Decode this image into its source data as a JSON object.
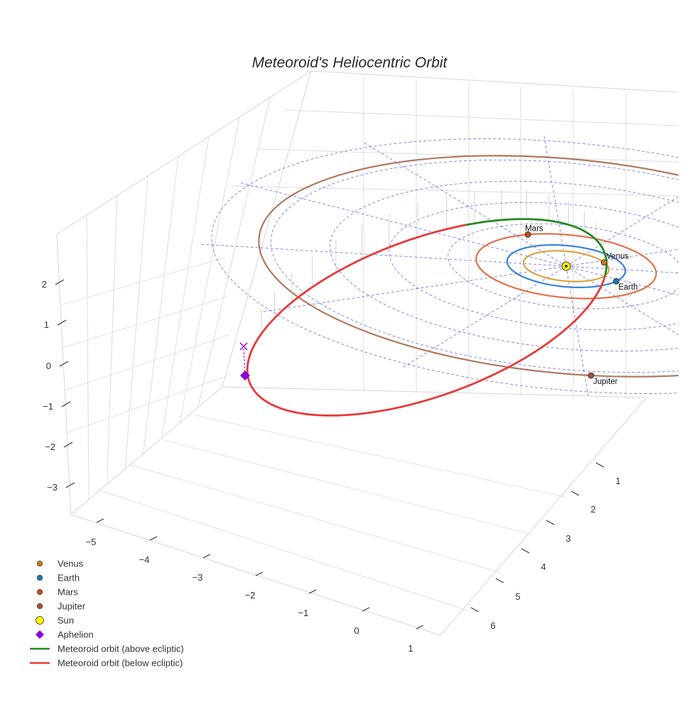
{
  "chart_data": {
    "type": "scatter",
    "title": "Meteoroid's Heliocentric Orbit",
    "xlabel": "",
    "ylabel": "",
    "zlabel": "",
    "x_ticks": [
      -5,
      -4,
      -3,
      -2,
      -1,
      0,
      1
    ],
    "y_ticks": [
      1,
      2,
      3,
      4,
      5,
      6
    ],
    "z_ticks": [
      2,
      1,
      0,
      -1,
      -2,
      -3
    ],
    "grid": true,
    "legend_position": "bottom-left",
    "planet_orbit_radii_au": {
      "Venus": 0.723,
      "Earth": 1.0,
      "Mars": 1.524,
      "Jupiter": 5.203
    },
    "bodies": [
      {
        "name": "Venus",
        "label": "Venus",
        "color": "#c97a1e"
      },
      {
        "name": "Earth",
        "label": "Earth",
        "color": "#1f77b4"
      },
      {
        "name": "Mars",
        "label": "Mars",
        "color": "#c44e1c"
      },
      {
        "name": "Jupiter",
        "label": "Jupiter",
        "color": "#a5543a"
      }
    ],
    "orbit_colors": {
      "Venus": "#d9a441",
      "Earth": "#3b82d6",
      "Mars": "#e0704a",
      "Jupiter": "#b07a5e"
    },
    "sun": {
      "name": "Sun",
      "color": "#ffff00"
    },
    "aphelion": {
      "name": "Aphelion",
      "color": "#8b00d6"
    },
    "meteoroid": {
      "above_color": "#228b22",
      "below_color": "#e8393a"
    },
    "ecliptic_grid_color": "#5a5ae0",
    "legend": [
      {
        "label": "Venus",
        "marker": "circle",
        "color": "#c97a1e"
      },
      {
        "label": "Earth",
        "marker": "circle",
        "color": "#1f77b4"
      },
      {
        "label": "Mars",
        "marker": "circle",
        "color": "#c44e1c"
      },
      {
        "label": "Jupiter",
        "marker": "circle",
        "color": "#a5543a"
      },
      {
        "label": "Sun",
        "marker": "circle-large",
        "color": "#ffff00"
      },
      {
        "label": "Aphelion",
        "marker": "diamond",
        "color": "#8b00d6"
      },
      {
        "label": "Meteoroid orbit (above ecliptic)",
        "marker": "line",
        "color": "#228b22"
      },
      {
        "label": "Meteoroid orbit (below ecliptic)",
        "marker": "line",
        "color": "#e8393a"
      }
    ]
  }
}
